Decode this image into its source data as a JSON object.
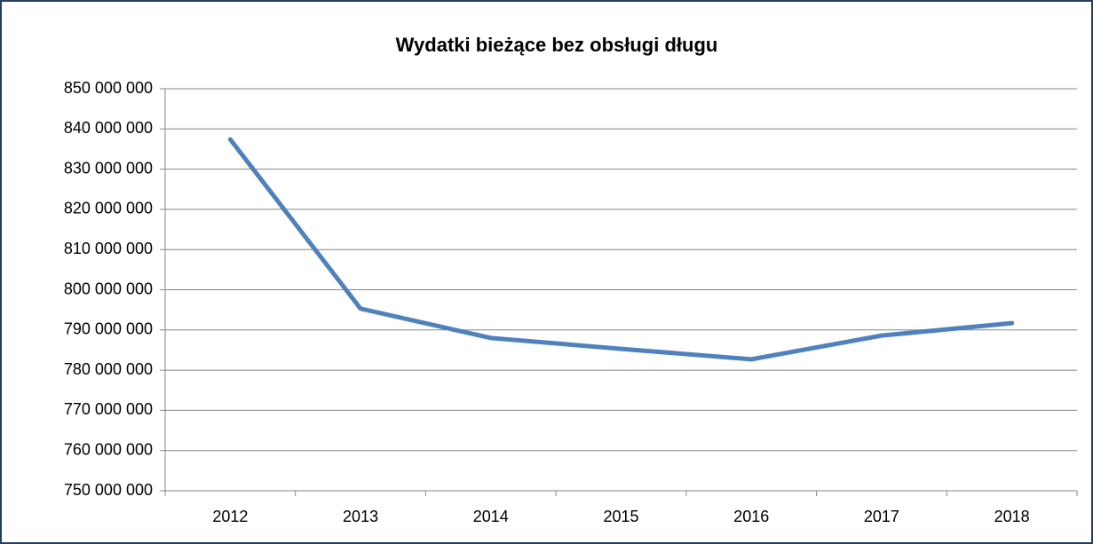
{
  "chart_data": {
    "type": "line",
    "title": "Wydatki bieżące bez obsługi długu",
    "categories": [
      "2012",
      "2013",
      "2014",
      "2015",
      "2016",
      "2017",
      "2018"
    ],
    "series": [
      {
        "name": "Wydatki bieżące bez obsługi długu",
        "color": "#4f81bd",
        "values": [
          837400000,
          795300000,
          788000000,
          785300000,
          782700000,
          788600000,
          791700000
        ]
      }
    ],
    "ylim": [
      750000000,
      850000000
    ],
    "yticks": [
      {
        "value": 750000000,
        "label": "750 000 000"
      },
      {
        "value": 760000000,
        "label": "760 000 000"
      },
      {
        "value": 770000000,
        "label": "770 000 000"
      },
      {
        "value": 780000000,
        "label": "780 000 000"
      },
      {
        "value": 790000000,
        "label": "790 000 000"
      },
      {
        "value": 800000000,
        "label": "800 000 000"
      },
      {
        "value": 810000000,
        "label": "810 000 000"
      },
      {
        "value": 820000000,
        "label": "820 000 000"
      },
      {
        "value": 830000000,
        "label": "830 000 000"
      },
      {
        "value": 840000000,
        "label": "840 000 000"
      },
      {
        "value": 850000000,
        "label": "850 000 000"
      }
    ],
    "grid": true
  }
}
